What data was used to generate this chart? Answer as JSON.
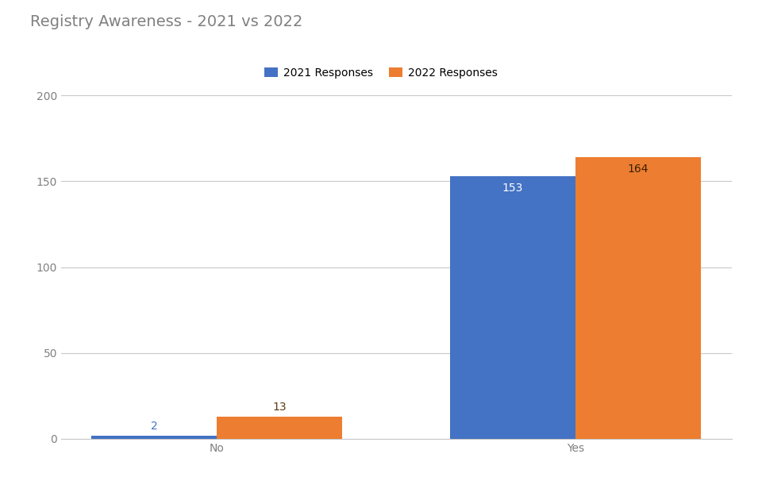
{
  "title": "Registry Awareness - 2021 vs 2022",
  "categories": [
    "No",
    "Yes"
  ],
  "series": [
    {
      "label": "2021 Responses",
      "values": [
        2,
        153
      ],
      "color": "#4472C4"
    },
    {
      "label": "2022 Responses",
      "values": [
        13,
        164
      ],
      "color": "#ED7D31"
    }
  ],
  "ylim": [
    0,
    200
  ],
  "yticks": [
    0,
    50,
    100,
    150,
    200
  ],
  "bar_width": 0.35,
  "title_fontsize": 14,
  "legend_fontsize": 10,
  "tick_fontsize": 10,
  "label_fontsize": 10,
  "background_color": "#FFFFFF",
  "grid_color": "#C8C8C8",
  "title_color": "#808080",
  "tick_color": "#808080",
  "label_2021_color_small": "#4472C4",
  "label_2021_color_large": "#FFFFFF",
  "label_2022_color_small": "#5A3A10",
  "label_2022_color_large": "#3A2000"
}
